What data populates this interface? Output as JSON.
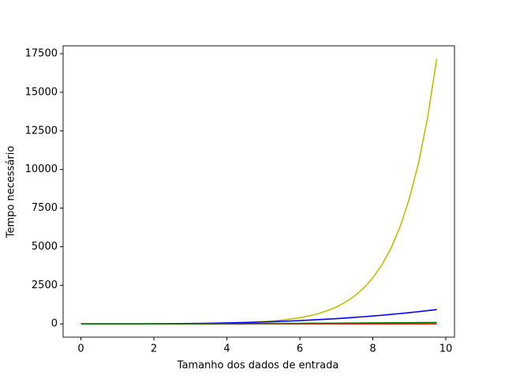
{
  "chart_data": {
    "type": "line",
    "xlabel": "Tamanho dos dados de entrada",
    "ylabel": "Tempo necessário",
    "x": [
      0,
      0.25,
      0.5,
      0.75,
      1,
      1.25,
      1.5,
      1.75,
      2,
      2.25,
      2.5,
      2.75,
      3,
      3.25,
      3.5,
      3.75,
      4,
      4.25,
      4.5,
      4.75,
      5,
      5.25,
      5.5,
      5.75,
      6,
      6.25,
      6.5,
      6.75,
      7,
      7.25,
      7.5,
      7.75,
      8,
      8.25,
      8.5,
      8.75,
      9,
      9.25,
      9.5,
      9.75
    ],
    "series": [
      {
        "color": "#bfbf00",
        "values": [
          1,
          1.284,
          1.649,
          2.117,
          2.718,
          3.49,
          4.482,
          5.755,
          7.389,
          9.488,
          12.18,
          15.64,
          20.09,
          25.79,
          33.12,
          42.52,
          54.6,
          70.11,
          90.02,
          115.6,
          148.4,
          190.6,
          244.7,
          314.2,
          403.4,
          518,
          665.1,
          854.1,
          1096.6,
          1408.1,
          1808,
          2321.6,
          2981,
          3827.6,
          4914.8,
          6310.7,
          8103.1,
          10404.6,
          13359.7,
          17154.2
        ]
      },
      {
        "color": "#0000ff",
        "values": [
          0,
          0.0156,
          0.125,
          0.422,
          1,
          1.953,
          3.375,
          5.359,
          8,
          11.39,
          15.63,
          20.8,
          27,
          34.33,
          42.88,
          52.73,
          64,
          76.77,
          91.13,
          107.2,
          125,
          144.7,
          166.4,
          190.1,
          216,
          244.1,
          274.6,
          307.5,
          343,
          381.1,
          421.9,
          465.5,
          512,
          561.5,
          614.1,
          669.9,
          729,
          791.5,
          857.4,
          926.9
        ]
      },
      {
        "color": "#ff0000",
        "values": [
          0,
          0.25,
          0.5,
          0.75,
          1,
          1.25,
          1.5,
          1.75,
          2,
          2.25,
          2.5,
          2.75,
          3,
          3.25,
          3.5,
          3.75,
          4,
          4.25,
          4.5,
          4.75,
          5,
          5.25,
          5.5,
          5.75,
          6,
          6.25,
          6.5,
          6.75,
          7,
          7.25,
          7.5,
          7.75,
          8,
          8.25,
          8.5,
          8.75,
          9,
          9.25,
          9.5,
          9.75
        ]
      },
      {
        "color": "#008000",
        "values": [
          0,
          0.0625,
          0.25,
          0.5625,
          1,
          1.5625,
          2.25,
          3.0625,
          4,
          5.0625,
          6.25,
          7.5625,
          9,
          10.5625,
          12.25,
          14.0625,
          16,
          18.0625,
          20.25,
          22.5625,
          25,
          27.5625,
          30.25,
          33.0625,
          36,
          39.0625,
          42.25,
          45.5625,
          49,
          52.5625,
          56.25,
          60.0625,
          64,
          68.0625,
          72.25,
          76.5625,
          81,
          85.5625,
          90.25,
          95.0625
        ]
      }
    ],
    "xlim": [
      -0.4875,
      10.2375
    ],
    "xticks": [
      0,
      2,
      4,
      6,
      8,
      10
    ],
    "ylim": [
      -857.7,
      18011.9
    ],
    "yticks": [
      0,
      2500,
      5000,
      7500,
      10000,
      12500,
      15000,
      17500
    ],
    "grid": false
  }
}
